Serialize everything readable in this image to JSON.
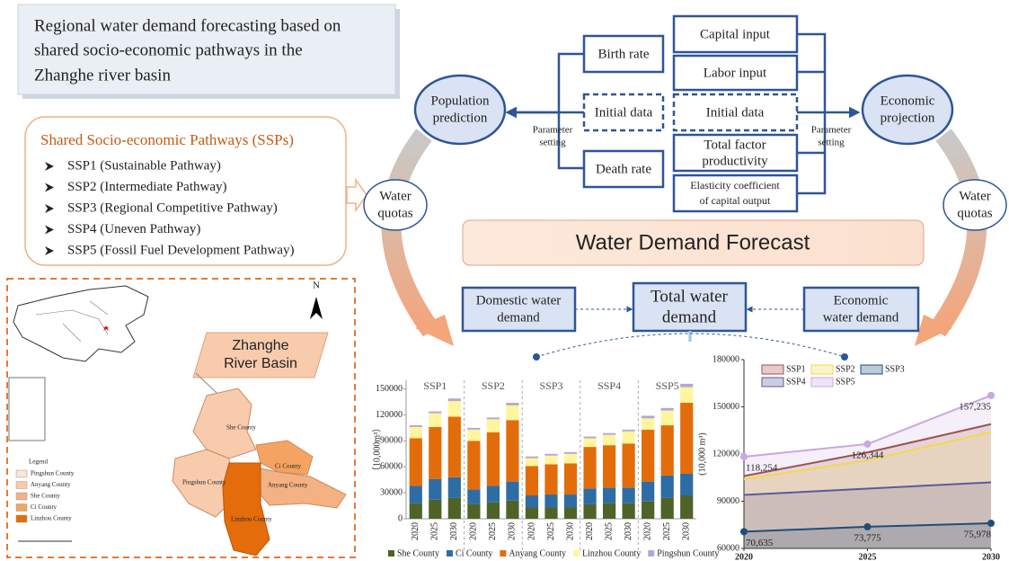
{
  "header": {
    "title_lines": [
      "Regional water demand forecasting based on",
      "shared socio-economic pathways in the",
      "Zhanghe river basin"
    ]
  },
  "ssps": {
    "title": "Shared Socio-economic Pathways (SSPs)",
    "items": [
      "SSP1 (Sustainable Pathway)",
      "SSP2 (Intermediate Pathway)",
      "SSP3 (Regional Competitive Pathway)",
      "SSP4 (Uneven Pathway)",
      "SSP5 (Fossil Fuel Development Pathway)"
    ]
  },
  "map": {
    "north": "N",
    "label_lines": [
      "Zhanghe",
      "River Basin"
    ],
    "legend_title": "Legend",
    "legend": [
      "Pingshun County",
      "Anyang County",
      "She County",
      "Ci County",
      "Linzhou County"
    ],
    "counties": [
      "She County",
      "Ci County",
      "Pingshun County",
      "Anyang County",
      "Linzhou County"
    ]
  },
  "flow": {
    "population": [
      "Population",
      "prediction"
    ],
    "economic": [
      "Economic",
      "projection"
    ],
    "birth_rate": "Birth rate",
    "initial_data_left": "Initial data",
    "death_rate": "Death rate",
    "capital_input": "Capital input",
    "labor_input": "Labor input",
    "initial_data_right": "Initial data",
    "tfp": [
      "Total factor",
      "productivity"
    ],
    "elasticity": [
      "Elasticity coefficient",
      "of capital output"
    ],
    "parameter_left": [
      "Parameter",
      "setting"
    ],
    "parameter_right": [
      "Parameter",
      "setting"
    ],
    "quotas_left": [
      "Water",
      "quotas"
    ],
    "quotas_right": [
      "Water",
      "quotas"
    ],
    "forecast": "Water Demand Forecast",
    "domestic": [
      "Domestic water",
      "demand"
    ],
    "total": [
      "Total water",
      "demand"
    ],
    "economic_demand": [
      "Economic",
      "water demand"
    ]
  },
  "chart_data": [
    {
      "type": "stacked-bar",
      "y_label": "（10,000m³）",
      "groups": [
        "SSP1",
        "SSP2",
        "SSP3",
        "SSP4",
        "SSP5"
      ],
      "categories": [
        "2020",
        "2025",
        "2030",
        "2020",
        "2025",
        "2030",
        "2020",
        "2025",
        "2030",
        "2020",
        "2025",
        "2030",
        "2020",
        "2025",
        "2030"
      ],
      "ylim": [
        0,
        160000
      ],
      "yticks": [
        0,
        30000,
        60000,
        90000,
        120000,
        150000
      ],
      "series": [
        {
          "name": "She County",
          "color": "#4f6228",
          "values": [
            18000,
            22000,
            24000,
            17000,
            19000,
            21000,
            13000,
            13000,
            13000,
            17000,
            18000,
            18000,
            20000,
            24000,
            27000
          ]
        },
        {
          "name": "Ci County",
          "color": "#2e6da4",
          "values": [
            20000,
            24000,
            24000,
            17000,
            19000,
            22000,
            14000,
            15000,
            15000,
            18000,
            18000,
            18000,
            23000,
            26000,
            25000
          ]
        },
        {
          "name": "Anyang County",
          "color": "#e36c0a",
          "values": [
            55000,
            60000,
            70000,
            56000,
            62000,
            71000,
            34000,
            35000,
            36000,
            48000,
            49000,
            51000,
            60000,
            58000,
            82000
          ]
        },
        {
          "name": "Linzhou County",
          "color": "#fff59d",
          "values": [
            13000,
            16000,
            18000,
            13000,
            15000,
            17000,
            9000,
            10000,
            11000,
            10000,
            12000,
            14000,
            13000,
            17000,
            18000
          ]
        },
        {
          "name": "Pingshun County",
          "color": "#b4a7d6",
          "values": [
            2000,
            2000,
            3000,
            2000,
            2000,
            3000,
            2000,
            2000,
            2000,
            2000,
            2000,
            2000,
            3000,
            3000,
            4000
          ]
        }
      ]
    },
    {
      "type": "line",
      "y_label": "(10,000 m³)",
      "x": [
        2020,
        2025,
        2030
      ],
      "xlim": [
        2020,
        2030
      ],
      "xticks": [
        2020,
        2025,
        2030
      ],
      "ylim": [
        60000,
        180000
      ],
      "yticks": [
        60000,
        90000,
        120000,
        150000,
        180000
      ],
      "series": [
        {
          "name": "SSP1",
          "color": "#a0524f",
          "values": [
            106000,
            121000,
            139000
          ]
        },
        {
          "name": "SSP2",
          "color": "#f2d94e",
          "values": [
            104000,
            116000,
            134000
          ]
        },
        {
          "name": "SSP3",
          "color": "#1f4e79",
          "values": [
            70635,
            73775,
            75978
          ],
          "value_labels": [
            "70,635",
            "73,775",
            "75,978"
          ],
          "markers": true
        },
        {
          "name": "SSP4",
          "color": "#5b5b9b",
          "values": [
            94000,
            98000,
            102000
          ]
        },
        {
          "name": "SSP5",
          "color": "#c9a7e0",
          "values": [
            118254,
            126344,
            157235
          ],
          "value_labels": [
            "118,254",
            "126,344",
            "157,235"
          ],
          "markers": true
        }
      ]
    }
  ]
}
